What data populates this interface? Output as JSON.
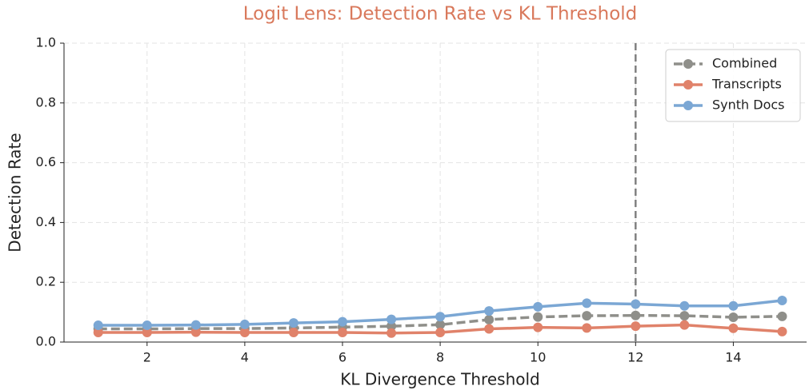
{
  "chart_data": {
    "type": "line",
    "title": "Logit Lens: Detection Rate vs KL Threshold",
    "xlabel": "KL Divergence Threshold",
    "ylabel": "Detection Rate",
    "x": [
      1,
      2,
      3,
      4,
      5,
      6,
      7,
      8,
      9,
      10,
      11,
      12,
      13,
      14,
      15
    ],
    "series": [
      {
        "name": "Combined",
        "color": "#8f8f8a",
        "linestyle": "dashed",
        "values": [
          0.044,
          0.044,
          0.045,
          0.045,
          0.047,
          0.05,
          0.053,
          0.058,
          0.075,
          0.084,
          0.088,
          0.089,
          0.088,
          0.083,
          0.086
        ]
      },
      {
        "name": "Transcripts",
        "color": "#e0826a",
        "linestyle": "solid",
        "values": [
          0.032,
          0.032,
          0.033,
          0.032,
          0.032,
          0.032,
          0.03,
          0.032,
          0.044,
          0.049,
          0.047,
          0.053,
          0.057,
          0.046,
          0.035
        ]
      },
      {
        "name": "Synth Docs",
        "color": "#7ba7d4",
        "linestyle": "solid",
        "values": [
          0.056,
          0.056,
          0.057,
          0.059,
          0.064,
          0.068,
          0.076,
          0.085,
          0.104,
          0.118,
          0.13,
          0.127,
          0.121,
          0.121,
          0.139
        ]
      }
    ],
    "xlim": [
      0.3,
      15.5
    ],
    "ylim": [
      0,
      1
    ],
    "xticks": [
      2,
      4,
      6,
      8,
      10,
      12,
      14
    ],
    "yticks": [
      {
        "value": 0,
        "label": "0.0"
      },
      {
        "value": 0.2,
        "label": "0.2"
      },
      {
        "value": 0.4,
        "label": "0.4"
      },
      {
        "value": 0.6,
        "label": "0.6"
      },
      {
        "value": 0.8,
        "label": "0.8"
      },
      {
        "value": 1,
        "label": "1.0"
      }
    ],
    "vline": 12,
    "grid": true,
    "legend": "upper right"
  }
}
